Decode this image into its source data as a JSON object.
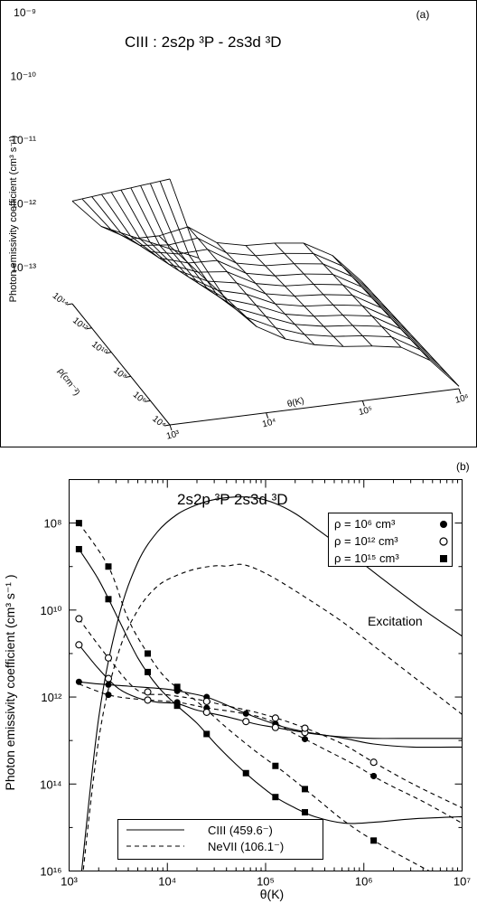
{
  "chart_data": [
    {
      "type": "surface3d",
      "panel_label": "(a)",
      "title": "CIII : 2s2p ³P - 2s3d ³D",
      "zlabel": "Photon emissivity coefficient (cm³ s⁻¹)",
      "ylabel": "ρ(cm⁻³)",
      "xlabel": "θ(K)",
      "z_ticks": [
        "10⁻⁹",
        "10⁻¹⁰",
        "10⁻¹¹",
        "10⁻¹²",
        "10⁻¹³"
      ],
      "density_ticks": [
        "10¹⁴",
        "10¹²",
        "10¹⁰",
        "10⁸",
        "10⁶",
        "10⁴"
      ],
      "temp_ticks": [
        "10³",
        "10⁴",
        "10⁵",
        "10⁶"
      ],
      "x_log_range": [
        3,
        6
      ],
      "y_log_range": [
        4,
        14
      ],
      "z_log_range": [
        -13.5,
        -9
      ],
      "grid_size": [
        10,
        10
      ]
    },
    {
      "type": "line",
      "panel_label": "(b)",
      "title": "2s2p ³P  2s3d  ³D",
      "xlabel": "θ(K)",
      "ylabel": "Photon emissivity coefficient (cm³ s⁻¹ )",
      "x_scale": "log",
      "xlim": [
        1000,
        10000000
      ],
      "y_log_range": [
        -16,
        -7
      ],
      "x_tick_labels": [
        "10³",
        "10⁴",
        "10⁵",
        "10⁶",
        "10⁷"
      ],
      "y_tick_labels": [
        "10⁸",
        "10¹⁰",
        "10¹²",
        "10¹⁴",
        "10¹⁶"
      ],
      "annotation": "Excitation",
      "legend_markers": [
        {
          "label": "ρ = 10⁶ cm³",
          "marker": "filled-circle"
        },
        {
          "label": "ρ = 10¹² cm³",
          "marker": "open-circle"
        },
        {
          "label": "ρ = 10¹⁵ cm³",
          "marker": "filled-square"
        }
      ],
      "legend_lines": [
        {
          "label": "CIII (459.6⁻)",
          "style": "solid"
        },
        {
          "label": "NeVII (106.1⁻)",
          "style": "dashed"
        }
      ],
      "series": [
        {
          "style": "solid",
          "points": [
            [
              3.1,
              -16.6
            ],
            [
              3.3,
              -12.5
            ],
            [
              3.5,
              -10.2
            ],
            [
              3.7,
              -8.9
            ],
            [
              3.9,
              -8.2
            ],
            [
              4.1,
              -7.8
            ],
            [
              4.3,
              -7.58
            ],
            [
              4.5,
              -7.45
            ],
            [
              4.7,
              -7.4
            ],
            [
              4.9,
              -7.42
            ],
            [
              5.1,
              -7.55
            ],
            [
              5.3,
              -7.78
            ],
            [
              5.5,
              -8.1
            ],
            [
              5.8,
              -8.6
            ],
            [
              6.2,
              -9.3
            ],
            [
              6.6,
              -9.98
            ],
            [
              7.0,
              -10.6
            ]
          ]
        },
        {
          "style": "dashed",
          "points": [
            [
              3.1,
              -16.9
            ],
            [
              3.3,
              -13.0
            ],
            [
              3.5,
              -11.0
            ],
            [
              3.7,
              -10.0
            ],
            [
              3.9,
              -9.45
            ],
            [
              4.1,
              -9.2
            ],
            [
              4.3,
              -9.05
            ],
            [
              4.5,
              -8.98
            ],
            [
              4.6,
              -8.99
            ],
            [
              4.75,
              -8.95
            ],
            [
              4.9,
              -9.05
            ],
            [
              5.1,
              -9.28
            ],
            [
              5.4,
              -9.7
            ],
            [
              5.8,
              -10.3
            ],
            [
              6.2,
              -11.0
            ],
            [
              6.6,
              -11.7
            ],
            [
              7.0,
              -12.4
            ]
          ]
        },
        {
          "style": "solid",
          "marker": "filled-circle",
          "points": [
            [
              3.1,
              -11.65
            ],
            [
              3.3,
              -11.7
            ],
            [
              3.6,
              -11.75
            ],
            [
              4.0,
              -11.82
            ],
            [
              4.2,
              -11.9
            ],
            [
              4.4,
              -12.0
            ],
            [
              4.6,
              -12.18
            ],
            [
              4.8,
              -12.38
            ],
            [
              5.0,
              -12.55
            ],
            [
              5.2,
              -12.7
            ],
            [
              5.4,
              -12.8
            ],
            [
              5.8,
              -12.95
            ],
            [
              6.1,
              -13.08
            ],
            [
              6.5,
              -13.15
            ],
            [
              7.0,
              -13.15
            ]
          ]
        },
        {
          "style": "solid",
          "marker": "open-circle",
          "points": [
            [
              3.1,
              -10.8
            ],
            [
              3.3,
              -11.35
            ],
            [
              3.5,
              -11.8
            ],
            [
              3.7,
              -12.02
            ],
            [
              3.9,
              -12.12
            ],
            [
              4.1,
              -12.15
            ],
            [
              4.3,
              -12.3
            ],
            [
              4.6,
              -12.45
            ],
            [
              4.9,
              -12.62
            ],
            [
              5.1,
              -12.7
            ],
            [
              5.3,
              -12.78
            ],
            [
              5.5,
              -12.85
            ],
            [
              5.8,
              -12.92
            ],
            [
              6.1,
              -12.95
            ],
            [
              6.5,
              -12.95
            ],
            [
              7.0,
              -12.95
            ]
          ]
        },
        {
          "style": "solid",
          "marker": "filled-square",
          "points": [
            [
              3.1,
              -8.6
            ],
            [
              3.3,
              -9.3
            ],
            [
              3.5,
              -10.2
            ],
            [
              3.7,
              -11.1
            ],
            [
              3.9,
              -11.75
            ],
            [
              4.1,
              -12.2
            ],
            [
              4.3,
              -12.6
            ],
            [
              4.5,
              -13.1
            ],
            [
              4.7,
              -13.55
            ],
            [
              4.9,
              -13.95
            ],
            [
              5.1,
              -14.3
            ],
            [
              5.3,
              -14.55
            ],
            [
              5.5,
              -14.75
            ],
            [
              5.8,
              -14.9
            ],
            [
              6.1,
              -14.88
            ],
            [
              6.5,
              -14.8
            ],
            [
              7.0,
              -14.75
            ]
          ]
        },
        {
          "style": "dashed",
          "marker": "filled-circle",
          "points": [
            [
              3.1,
              -11.7
            ],
            [
              3.4,
              -11.95
            ],
            [
              3.7,
              -12.05
            ],
            [
              4.1,
              -12.12
            ],
            [
              4.4,
              -12.25
            ],
            [
              4.7,
              -12.35
            ],
            [
              5.0,
              -12.5
            ],
            [
              5.3,
              -12.85
            ],
            [
              5.6,
              -13.2
            ],
            [
              5.9,
              -13.55
            ],
            [
              6.2,
              -13.95
            ],
            [
              6.6,
              -14.4
            ],
            [
              7.0,
              -14.9
            ]
          ]
        },
        {
          "style": "dashed",
          "marker": "open-circle",
          "points": [
            [
              3.1,
              -10.2
            ],
            [
              3.4,
              -11.1
            ],
            [
              3.7,
              -11.85
            ],
            [
              4.0,
              -11.95
            ],
            [
              4.3,
              -12.05
            ],
            [
              4.6,
              -12.2
            ],
            [
              4.9,
              -12.35
            ],
            [
              5.2,
              -12.55
            ],
            [
              5.5,
              -12.8
            ],
            [
              5.8,
              -13.1
            ],
            [
              6.1,
              -13.5
            ],
            [
              6.5,
              -14.0
            ],
            [
              7.0,
              -14.55
            ]
          ]
        },
        {
          "style": "dashed",
          "marker": "filled-square",
          "points": [
            [
              3.1,
              -8.0
            ],
            [
              3.4,
              -9.0
            ],
            [
              3.6,
              -10.2
            ],
            [
              3.8,
              -11.0
            ],
            [
              4.0,
              -11.6
            ],
            [
              4.3,
              -12.1
            ],
            [
              4.6,
              -12.7
            ],
            [
              4.9,
              -13.25
            ],
            [
              5.2,
              -13.75
            ],
            [
              5.5,
              -14.3
            ],
            [
              5.8,
              -14.85
            ],
            [
              6.1,
              -15.3
            ],
            [
              6.5,
              -15.8
            ],
            [
              7.0,
              -16.4
            ]
          ]
        }
      ],
      "markers": [
        {
          "shape": "filled-circle",
          "x": [
            3.1,
            3.4,
            4.1,
            4.4,
            4.8,
            5.1,
            5.4,
            6.1,
            3.4,
            4.1,
            4.4,
            5.1,
            5.4,
            6.1
          ]
        },
        {
          "shape": "open-circle",
          "x": [
            3.1,
            3.4,
            3.8,
            4.4,
            4.8,
            5.1,
            5.4,
            6.1,
            3.1,
            3.4,
            3.8,
            4.4,
            5.1,
            5.4
          ]
        },
        {
          "shape": "filled-square",
          "x": [
            3.1,
            3.4,
            3.8,
            4.1,
            4.4,
            4.8,
            5.1,
            5.4,
            6.1,
            3.1,
            3.4,
            3.8,
            4.1,
            5.1,
            5.4
          ]
        }
      ]
    }
  ]
}
